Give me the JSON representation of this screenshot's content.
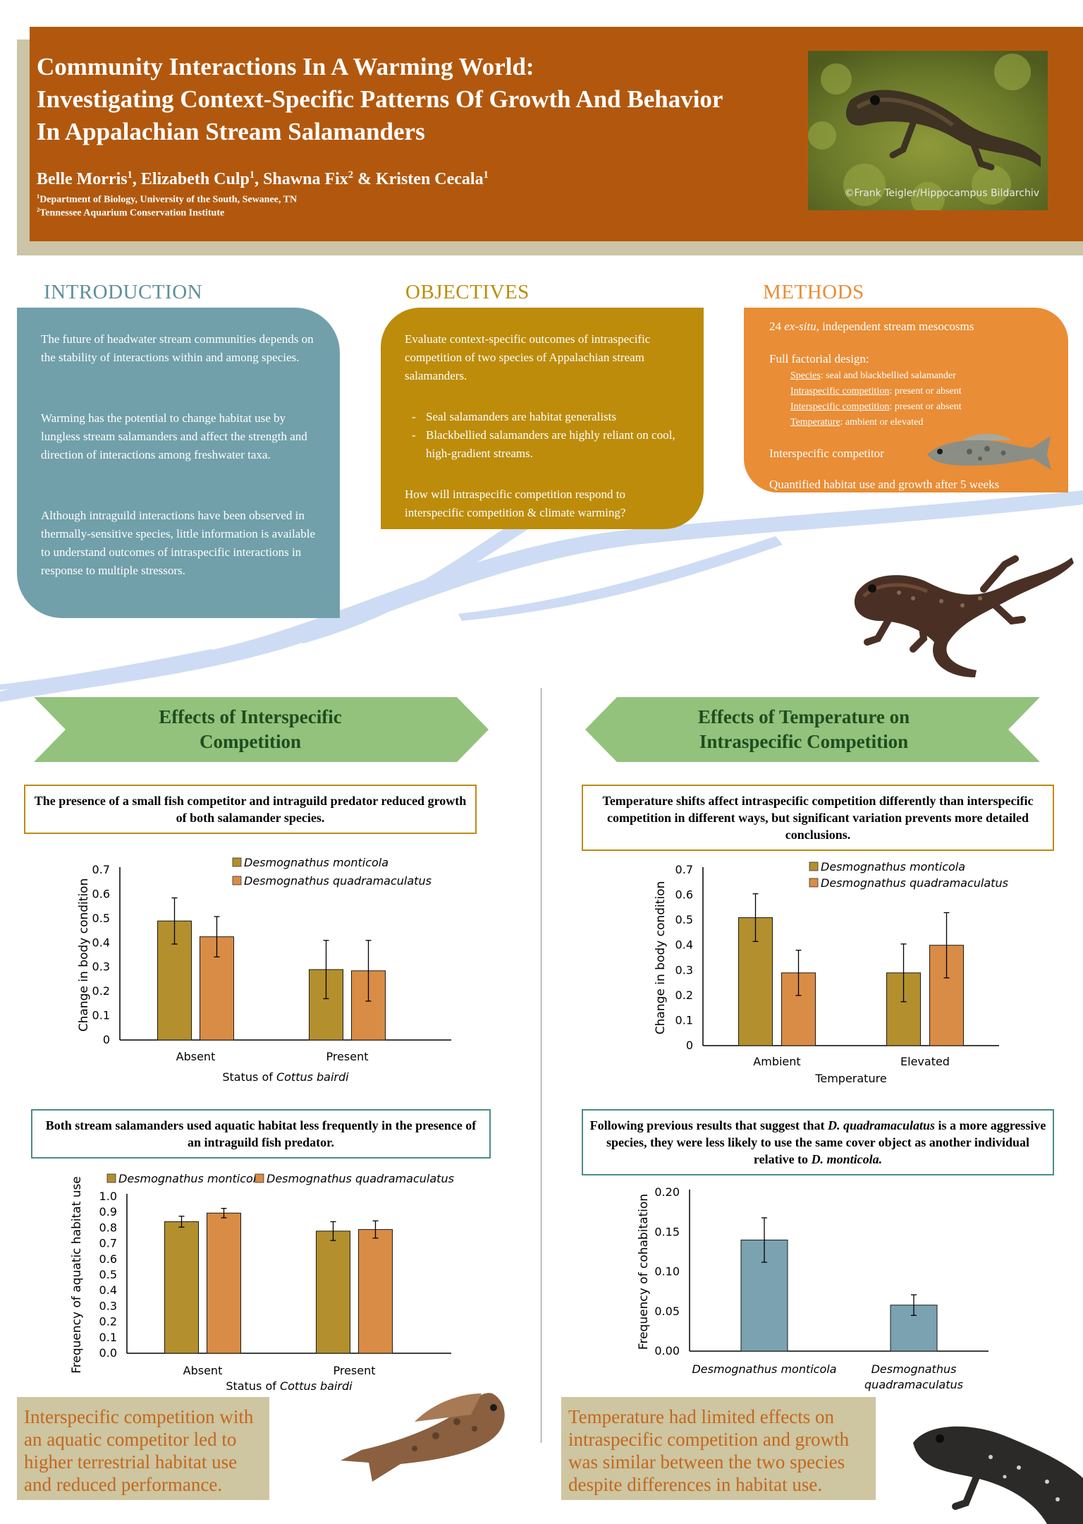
{
  "header": {
    "title_lines": [
      "Community Interactions In A Warming World:",
      "Investigating Context-Specific Patterns Of Growth And Behavior",
      "In Appalachian Stream Salamanders"
    ],
    "authors": [
      {
        "name": "Belle Morris",
        "sup": "1"
      },
      {
        "name": "Elizabeth Culp",
        "sup": "1"
      },
      {
        "name": "Shawna Fix",
        "sup": "2"
      },
      {
        "name": "Kristen Cecala",
        "sup": "1"
      }
    ],
    "author_sep": ", ",
    "author_and": " & ",
    "affiliations": [
      {
        "sup": "1",
        "text": "Department of Biology, University of the South, Sewanee, TN"
      },
      {
        "sup": "2",
        "text": "Tennessee Aquarium Conservation Institute"
      }
    ],
    "photo_credit": "©Frank Teigler/Hippocampus Bildarchiv"
  },
  "introduction": {
    "heading": "INTRODUCTION",
    "paragraphs": [
      "The future of headwater stream communities depends on the stability of interactions within and among species.",
      "Warming has the potential to change habitat use by lungless stream salamanders and affect the strength and direction of interactions among freshwater taxa.",
      "Although intraguild interactions have been observed in thermally-sensitive species, little information is available to understand outcomes of intraspecific interactions in response to multiple stressors."
    ]
  },
  "objectives": {
    "heading": "OBJECTIVES",
    "lead": "Evaluate context-specific outcomes of intraspecific competition of two species of Appalachian stream salamanders.",
    "bullets": [
      "Seal salamanders are habitat generalists",
      "Blackbellied salamanders are highly reliant on cool, high-gradient streams."
    ],
    "question": "How will intraspecific competition respond to interspecific competition & climate warming?"
  },
  "methods": {
    "heading": "METHODS",
    "line1_pre": "24 ",
    "line1_em": "ex-situ",
    "line1_post": ", independent stream mesocosms",
    "design_label": "Full factorial design:",
    "factors": [
      {
        "name": "Species",
        "desc": ": seal and blackbellied salamander"
      },
      {
        "name": "Intraspecific competition",
        "desc": ": present or absent"
      },
      {
        "name": "Interspecific competition",
        "desc": ": present or absent"
      },
      {
        "name": "Temperature",
        "desc": ": ambient or elevated"
      }
    ],
    "competitor": "Interspecific competitor",
    "quantified": "Quantified habitat use and growth after 5 weeks"
  },
  "left_section": {
    "banner_lines": [
      "Effects of Interspecific",
      "Competition"
    ],
    "finding1": "The presence of a small fish competitor and intraguild predator reduced growth of both salamander species.",
    "finding2": "Both stream salamanders used aquatic habitat less frequently in the presence of an intraguild fish predator.",
    "conclusion": "Interspecific competition with an aquatic competitor led to higher terrestrial habitat use and reduced performance."
  },
  "right_section": {
    "banner_lines": [
      "Effects of Temperature on",
      "Intraspecific Competition"
    ],
    "finding1": "Temperature shifts affect intraspecific competition differently than interspecific competition in different ways, but significant variation prevents more detailed conclusions.",
    "finding2_parts": [
      {
        "t": "Following previous results that suggest that ",
        "i": false
      },
      {
        "t": "D. quadramaculatus",
        "i": true
      },
      {
        "t": " is a more aggressive species, they were less likely to use the same cover object as another individual relative to ",
        "i": false
      },
      {
        "t": "D. monticola.",
        "i": true
      }
    ],
    "conclusion": "Temperature had limited effects on intraspecific competition and growth was similar between the two species despite differences in habitat use."
  },
  "colors": {
    "monticola": "#b38f2e",
    "quadramaculatus": "#d98c45",
    "cohab": "#7aa2b0"
  },
  "chart_data": [
    {
      "type": "bar",
      "categories": [
        "Absent",
        "Present"
      ],
      "xlabel_pre": "Status of ",
      "xlabel_em": "Cottus bairdi",
      "ylabel": "Change in body condition",
      "ylim": [
        0,
        0.7
      ],
      "yticks": [
        "0",
        "0.1",
        "0.2",
        "0.3",
        "0.4",
        "0.5",
        "0.6",
        "0.7"
      ],
      "legend": "top-right",
      "series": [
        {
          "name": "Desmognathus monticola",
          "values": [
            0.49,
            0.29
          ],
          "err": [
            0.095,
            0.12
          ]
        },
        {
          "name": "Desmognathus quadramaculatus",
          "values": [
            0.425,
            0.285
          ],
          "err": [
            0.083,
            0.125
          ]
        }
      ]
    },
    {
      "type": "bar",
      "categories": [
        "Absent",
        "Present"
      ],
      "xlabel_pre": "Status of ",
      "xlabel_em": "Cottus bairdi",
      "ylabel": "Frequency of aquatic habitat use",
      "ylim": [
        0,
        1.0
      ],
      "yticks": [
        "0.0",
        "0.1",
        "0.2",
        "0.3",
        "0.4",
        "0.5",
        "0.6",
        "0.7",
        "0.8",
        "0.9",
        "1.0"
      ],
      "legend": "top",
      "series": [
        {
          "name": "Desmognathus monticola",
          "values": [
            0.84,
            0.78
          ],
          "err": [
            0.035,
            0.06
          ]
        },
        {
          "name": "Desmognathus quadramaculatus",
          "values": [
            0.895,
            0.79
          ],
          "err": [
            0.03,
            0.055
          ]
        }
      ]
    },
    {
      "type": "bar",
      "categories": [
        "Ambient",
        "Elevated"
      ],
      "xlabel": "Temperature",
      "ylabel": "Change in body condition",
      "ylim": [
        0,
        0.7
      ],
      "yticks": [
        "0",
        "0.1",
        "0.2",
        "0.3",
        "0.4",
        "0.5",
        "0.6",
        "0.7"
      ],
      "legend": "top-right",
      "series": [
        {
          "name": "Desmognathus monticola",
          "values": [
            0.51,
            0.29
          ],
          "err": [
            0.095,
            0.115
          ]
        },
        {
          "name": "Desmognathus quadramaculatus",
          "values": [
            0.29,
            0.4
          ],
          "err": [
            0.09,
            0.13
          ]
        }
      ]
    },
    {
      "type": "bar",
      "categories": [
        "Desmognathus monticola",
        "Desmognathus quadramaculatus"
      ],
      "category_lines": [
        [
          "Desmognathus monticola"
        ],
        [
          "Desmognathus",
          "quadramaculatus"
        ]
      ],
      "ylabel": "Frequency of cohabitation",
      "ylim": [
        0,
        0.2
      ],
      "yticks": [
        "0.00",
        "0.05",
        "0.10",
        "0.15",
        "0.20"
      ],
      "series": [
        {
          "name": "",
          "values": [
            0.14,
            0.058
          ],
          "err": [
            0.028,
            0.013
          ]
        }
      ]
    }
  ]
}
